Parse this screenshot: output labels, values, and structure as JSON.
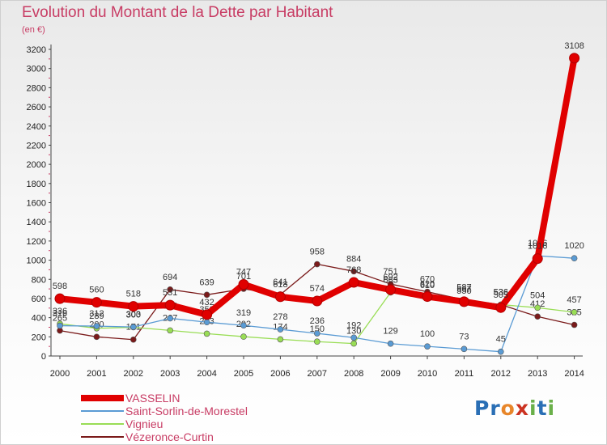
{
  "chart_data": {
    "type": "line",
    "title": "Evolution du Montant de la Dette par Habitant",
    "subtitle": "(en €)",
    "x": [
      "2000",
      "2001",
      "2002",
      "2003",
      "2004",
      "2005",
      "2006",
      "2007",
      "2008",
      "2009",
      "2010",
      "2011",
      "2012",
      "2013",
      "2014"
    ],
    "ylim": [
      0,
      3200
    ],
    "yticks": [
      0,
      200,
      400,
      600,
      800,
      1000,
      1200,
      1400,
      1600,
      1800,
      2000,
      2200,
      2400,
      2600,
      2800,
      3000,
      3200
    ],
    "grid": false,
    "legend_position": "bottom-left",
    "series": [
      {
        "name": "VASSELIN",
        "color": "#e00000",
        "values": [
          598,
          560,
          518,
          531,
          432,
          747,
          618,
          574,
          768,
          692,
          620,
          567,
          505,
          1016,
          3108
        ],
        "labels": [
          "598",
          "560",
          "518",
          "531",
          "432",
          "747",
          "618",
          "574",
          "768",
          "692",
          "620",
          "567",
          "505",
          "1016",
          "3108"
        ]
      },
      {
        "name": "Saint-Sorlin-de-Morestel",
        "color": "#5a9bd4",
        "values": [
          316,
          312,
          303,
          393,
          353,
          319,
          278,
          236,
          192,
          129,
          100,
          73,
          45,
          1046,
          1020
        ],
        "labels": [
          "316",
          "312",
          "303",
          "393",
          "353",
          "319",
          "278",
          "236",
          "192",
          "129",
          "100",
          "73",
          "45",
          "1046",
          "1020"
        ]
      },
      {
        "name": "Vignieu",
        "color": "#99dd55",
        "values": [
          336,
          289,
          300,
          267,
          233,
          202,
          174,
          150,
          130,
          663,
          610,
          550,
          536,
          504,
          457
        ],
        "labels": [
          "336",
          "289",
          "300",
          "267",
          "233",
          "202",
          "174",
          "150",
          "130",
          "663",
          "610",
          "550",
          "536",
          "504",
          "457"
        ]
      },
      {
        "name": "Vézeronce-Curtin",
        "color": "#7a1a1a",
        "values": [
          265,
          200,
          171,
          694,
          639,
          701,
          641,
          958,
          884,
          751,
          670,
          587,
          536,
          412,
          325
        ],
        "labels": [
          "265",
          "200",
          "171",
          "694",
          "639",
          "701",
          "641",
          "958",
          "884",
          "751",
          "670",
          "587",
          "536",
          "412",
          "325"
        ]
      }
    ]
  },
  "logo": {
    "letters": [
      {
        "ch": "P",
        "color": "#2a6fb5"
      },
      {
        "ch": "r",
        "color": "#2a6fb5"
      },
      {
        "ch": "o",
        "color": "#e8862a"
      },
      {
        "ch": "x",
        "color": "#cc3322"
      },
      {
        "ch": "i",
        "color": "#6ab04a"
      },
      {
        "ch": "t",
        "color": "#2a6fb5"
      },
      {
        "ch": "i",
        "color": "#6ab04a"
      }
    ]
  }
}
